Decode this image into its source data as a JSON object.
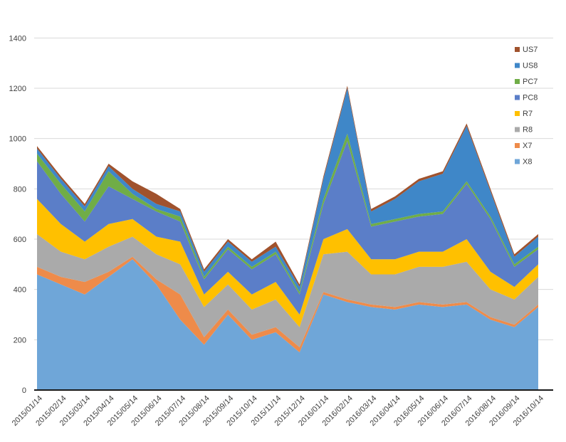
{
  "chart_data": {
    "type": "area",
    "stacked": true,
    "title": "",
    "xlabel": "",
    "ylabel": "",
    "ylim": [
      0,
      1500
    ],
    "yticks": [
      0,
      200,
      400,
      600,
      800,
      1000,
      1200,
      1400
    ],
    "grid": true,
    "legend_position": "right",
    "x": [
      "2015/01/14",
      "2015/02/14",
      "2015/03/14",
      "2015/04/14",
      "2015/05/14",
      "2015/06/14",
      "2015/07/14",
      "2015/08/14",
      "2015/09/14",
      "2015/10/14",
      "2015/11/14",
      "2015/12/14",
      "2016/01/14",
      "2016/02/14",
      "2016/03/14",
      "2016/04/14",
      "2016/05/14",
      "2016/06/14",
      "2016/07/14",
      "2016/08/14",
      "2016/09/14",
      "2016/10/14"
    ],
    "series": [
      {
        "name": "X8",
        "color": "#6fa6d8",
        "values": [
          460,
          420,
          380,
          450,
          520,
          420,
          280,
          180,
          300,
          200,
          230,
          150,
          380,
          350,
          330,
          320,
          340,
          330,
          340,
          280,
          250,
          330
        ]
      },
      {
        "name": "X7",
        "color": "#ee8b4a",
        "values": [
          30,
          30,
          50,
          20,
          10,
          20,
          100,
          30,
          20,
          20,
          20,
          20,
          10,
          10,
          10,
          10,
          10,
          10,
          10,
          10,
          10,
          10
        ]
      },
      {
        "name": "R8",
        "color": "#aaaaaa",
        "values": [
          130,
          100,
          90,
          100,
          80,
          100,
          120,
          120,
          100,
          100,
          110,
          80,
          150,
          190,
          120,
          130,
          140,
          150,
          160,
          110,
          100,
          110
        ]
      },
      {
        "name": "R7",
        "color": "#ffc000",
        "values": [
          140,
          110,
          70,
          90,
          70,
          70,
          90,
          50,
          50,
          60,
          70,
          50,
          60,
          90,
          60,
          60,
          60,
          60,
          90,
          70,
          50,
          50
        ]
      },
      {
        "name": "PC8",
        "color": "#5b7ec8",
        "values": [
          150,
          120,
          80,
          150,
          80,
          100,
          80,
          60,
          90,
          100,
          110,
          80,
          140,
          350,
          130,
          150,
          140,
          150,
          220,
          210,
          80,
          60
        ]
      },
      {
        "name": "PC7",
        "color": "#70ad47",
        "values": [
          30,
          40,
          40,
          60,
          20,
          10,
          20,
          10,
          10,
          10,
          10,
          10,
          20,
          30,
          10,
          10,
          10,
          10,
          10,
          10,
          10,
          10
        ]
      },
      {
        "name": "US8",
        "color": "#3f87c8",
        "values": [
          20,
          20,
          20,
          20,
          20,
          20,
          20,
          20,
          20,
          20,
          20,
          20,
          80,
          180,
          50,
          80,
          130,
          150,
          220,
          100,
          30,
          40
        ]
      },
      {
        "name": "US7",
        "color": "#a0522d",
        "values": [
          10,
          10,
          10,
          10,
          30,
          40,
          10,
          10,
          10,
          10,
          20,
          10,
          10,
          10,
          10,
          10,
          10,
          10,
          10,
          10,
          10,
          10
        ]
      }
    ]
  }
}
